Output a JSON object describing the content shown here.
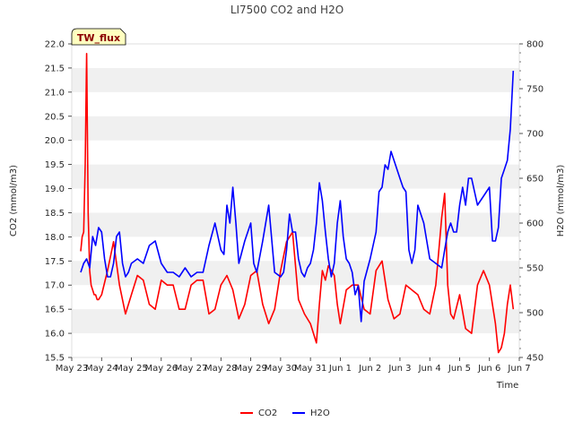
{
  "chart_data": {
    "type": "line",
    "title": "LI7500 CO2 and H2O",
    "badge": "TW_flux",
    "xlabel": "Time",
    "ylabel_left": "CO2 (mmol/m3)",
    "ylabel_right": "H2O (mmol/m3)",
    "ylim_left": [
      15.5,
      22.0
    ],
    "ylim_right": [
      450,
      800
    ],
    "xlim": [
      0,
      15
    ],
    "x_tick_labels": [
      "May 23",
      "May 24",
      "May 25",
      "May 26",
      "May 27",
      "May 28",
      "May 29",
      "May 30",
      "May 31",
      "Jun 1",
      "Jun 2",
      "Jun 3",
      "Jun 4",
      "Jun 5",
      "Jun 6",
      "Jun 7"
    ],
    "y_left_ticks": [
      15.5,
      16.0,
      16.5,
      17.0,
      17.5,
      18.0,
      18.5,
      19.0,
      19.5,
      20.0,
      20.5,
      21.0,
      21.5,
      22.0
    ],
    "y_left_tick_labels": [
      "15.5",
      "16.0",
      "16.5",
      "17.0",
      "17.5",
      "18.0",
      "18.5",
      "19.0",
      "19.5",
      "20.0",
      "20.5",
      "21.0",
      "21.5",
      "22.0"
    ],
    "y_right_ticks": [
      450,
      500,
      550,
      600,
      650,
      700,
      750,
      800
    ],
    "y_right_tick_labels": [
      "450",
      "500",
      "550",
      "600",
      "650",
      "700",
      "750",
      "800"
    ],
    "grid": "horizontal bands",
    "legend": {
      "position": "bottom-center",
      "entries": [
        "CO2",
        "H2O"
      ]
    },
    "colors": {
      "CO2": "#ff0000",
      "H2O": "#0000ff",
      "band": "#f0f0f0",
      "badge_bg": "#ffffc0"
    },
    "series": [
      {
        "name": "CO2",
        "axis": "left",
        "x": [
          0.3,
          0.35,
          0.4,
          0.45,
          0.5,
          0.55,
          0.6,
          0.65,
          0.7,
          0.75,
          0.8,
          0.85,
          0.9,
          1.0,
          1.2,
          1.4,
          1.6,
          1.8,
          2.0,
          2.2,
          2.4,
          2.6,
          2.8,
          3.0,
          3.2,
          3.4,
          3.6,
          3.8,
          4.0,
          4.2,
          4.4,
          4.6,
          4.8,
          5.0,
          5.2,
          5.4,
          5.6,
          5.8,
          6.0,
          6.2,
          6.4,
          6.6,
          6.8,
          7.0,
          7.2,
          7.4,
          7.6,
          7.8,
          8.0,
          8.1,
          8.2,
          8.3,
          8.4,
          8.5,
          8.6,
          8.7,
          8.8,
          8.9,
          9.0,
          9.2,
          9.4,
          9.6,
          9.8,
          10.0,
          10.2,
          10.4,
          10.6,
          10.8,
          11.0,
          11.2,
          11.4,
          11.6,
          11.8,
          12.0,
          12.2,
          12.3,
          12.4,
          12.5,
          12.6,
          12.7,
          12.8,
          13.0,
          13.2,
          13.4,
          13.6,
          13.8,
          14.0,
          14.2,
          14.3,
          14.4,
          14.5,
          14.6,
          14.7,
          14.8
        ],
        "values": [
          17.7,
          18.0,
          18.1,
          19.5,
          21.8,
          18.5,
          17.3,
          17.0,
          16.9,
          16.8,
          16.8,
          16.7,
          16.7,
          16.8,
          17.3,
          17.9,
          17.0,
          16.4,
          16.8,
          17.2,
          17.1,
          16.6,
          16.5,
          17.1,
          17.0,
          17.0,
          16.5,
          16.5,
          17.0,
          17.1,
          17.1,
          16.4,
          16.5,
          17.0,
          17.2,
          16.9,
          16.3,
          16.6,
          17.2,
          17.3,
          16.6,
          16.2,
          16.5,
          17.3,
          17.9,
          18.1,
          16.7,
          16.4,
          16.2,
          16.0,
          15.8,
          16.6,
          17.3,
          17.1,
          17.4,
          17.3,
          17.2,
          16.6,
          16.2,
          16.9,
          17.0,
          17.0,
          16.5,
          16.4,
          17.3,
          17.5,
          16.7,
          16.3,
          16.4,
          17.0,
          16.9,
          16.8,
          16.5,
          16.4,
          17.0,
          17.7,
          18.4,
          18.9,
          17.0,
          16.4,
          16.3,
          16.8,
          16.1,
          16.0,
          17.0,
          17.3,
          17.0,
          16.2,
          15.6,
          15.7,
          16.0,
          16.6,
          17.0,
          16.5
        ]
      },
      {
        "name": "H2O",
        "axis": "right",
        "x": [
          0.3,
          0.4,
          0.5,
          0.6,
          0.7,
          0.8,
          0.9,
          1.0,
          1.1,
          1.2,
          1.3,
          1.4,
          1.5,
          1.6,
          1.7,
          1.8,
          1.9,
          2.0,
          2.2,
          2.4,
          2.6,
          2.8,
          3.0,
          3.2,
          3.4,
          3.6,
          3.8,
          4.0,
          4.2,
          4.4,
          4.6,
          4.8,
          5.0,
          5.1,
          5.2,
          5.3,
          5.4,
          5.5,
          5.6,
          5.8,
          6.0,
          6.1,
          6.2,
          6.4,
          6.6,
          6.8,
          7.0,
          7.1,
          7.2,
          7.3,
          7.4,
          7.5,
          7.6,
          7.7,
          7.8,
          7.9,
          8.0,
          8.1,
          8.2,
          8.3,
          8.4,
          8.5,
          8.6,
          8.7,
          8.8,
          8.9,
          9.0,
          9.1,
          9.2,
          9.3,
          9.4,
          9.5,
          9.6,
          9.7,
          9.8,
          10.0,
          10.2,
          10.3,
          10.4,
          10.5,
          10.6,
          10.7,
          10.8,
          11.0,
          11.1,
          11.2,
          11.3,
          11.4,
          11.5,
          11.6,
          11.8,
          12.0,
          12.2,
          12.4,
          12.5,
          12.6,
          12.7,
          12.8,
          12.9,
          13.0,
          13.1,
          13.2,
          13.3,
          13.4,
          13.6,
          13.8,
          14.0,
          14.1,
          14.2,
          14.3,
          14.4,
          14.5,
          14.6,
          14.7,
          14.8
        ],
        "values": [
          545,
          555,
          560,
          550,
          585,
          575,
          595,
          590,
          560,
          540,
          540,
          555,
          585,
          590,
          555,
          540,
          545,
          555,
          560,
          555,
          575,
          580,
          555,
          545,
          545,
          540,
          550,
          540,
          545,
          545,
          575,
          600,
          570,
          565,
          620,
          600,
          640,
          600,
          555,
          580,
          600,
          555,
          545,
          580,
          620,
          545,
          540,
          545,
          570,
          610,
          590,
          590,
          560,
          545,
          540,
          550,
          555,
          570,
          600,
          645,
          625,
          590,
          560,
          540,
          555,
          600,
          625,
          585,
          560,
          555,
          545,
          520,
          530,
          490,
          535,
          560,
          590,
          635,
          640,
          665,
          660,
          680,
          670,
          650,
          640,
          635,
          570,
          555,
          570,
          620,
          600,
          560,
          555,
          550,
          570,
          590,
          600,
          590,
          590,
          620,
          640,
          620,
          650,
          650,
          620,
          630,
          640,
          580,
          580,
          595,
          650,
          660,
          670,
          705,
          770
        ]
      }
    ]
  }
}
